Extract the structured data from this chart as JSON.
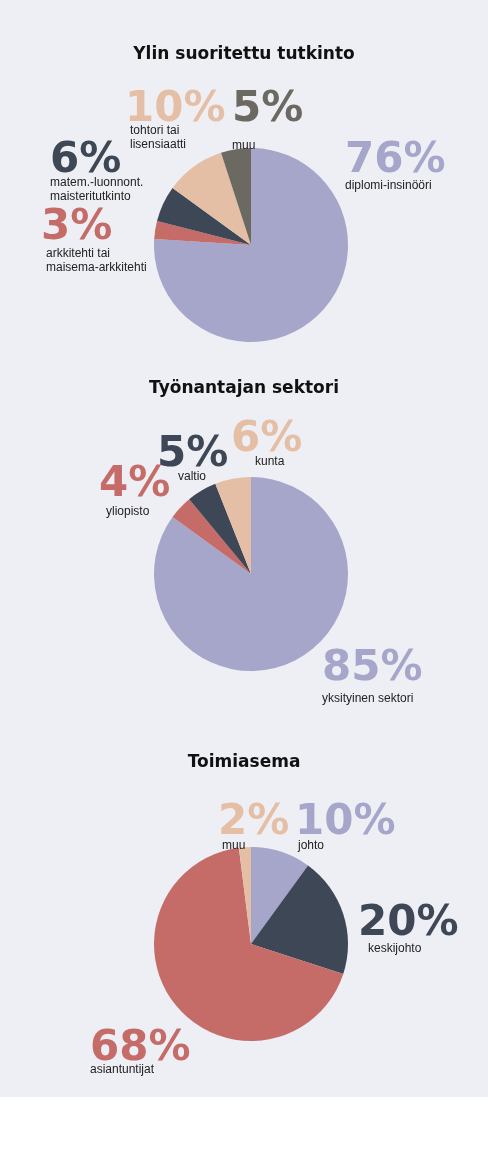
{
  "chart_data": [
    {
      "type": "pie",
      "title": "Ylin suoritettu tutkinto",
      "categories": [
        "diplomi-insinööri",
        "arkkitehti tai\nmaisema-arkkitehti",
        "matem.-luonnont.\nmaisteritutkinto",
        "tohtori tai\nlisensiaatti",
        "muu"
      ],
      "values": [
        76,
        3,
        6,
        10,
        5
      ],
      "colors": [
        "#a5a6c9",
        "#c56b68",
        "#3d4755",
        "#e5bfa5",
        "#6b6961"
      ],
      "value_labels": [
        "76%",
        "3%",
        "6%",
        "10%",
        "5%"
      ]
    },
    {
      "type": "pie",
      "title": "Työnantajan sektori",
      "categories": [
        "yksityinen sektori",
        "yliopisto",
        "valtio",
        "kunta"
      ],
      "values": [
        85,
        4,
        5,
        6
      ],
      "colors": [
        "#a5a6c9",
        "#c56b68",
        "#3d4755",
        "#e5bfa5"
      ],
      "value_labels": [
        "85%",
        "4%",
        "5%",
        "6%"
      ]
    },
    {
      "type": "pie",
      "title": "Toimiasema",
      "categories": [
        "johto",
        "keskijohto",
        "asiantuntijat",
        "muu"
      ],
      "values": [
        10,
        20,
        68,
        2
      ],
      "colors": [
        "#a5a6c9",
        "#3d4755",
        "#c56b68",
        "#e5bfa5"
      ],
      "value_labels": [
        "10%",
        "20%",
        "68%",
        "2%"
      ]
    }
  ]
}
